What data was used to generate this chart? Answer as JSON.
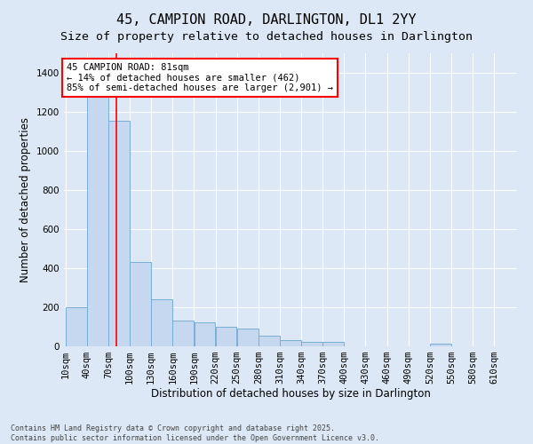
{
  "title": "45, CAMPION ROAD, DARLINGTON, DL1 2YY",
  "subtitle": "Size of property relative to detached houses in Darlington",
  "xlabel": "Distribution of detached houses by size in Darlington",
  "ylabel": "Number of detached properties",
  "bins": [
    10,
    40,
    70,
    100,
    130,
    160,
    190,
    220,
    250,
    280,
    310,
    340,
    370,
    400,
    430,
    460,
    490,
    520,
    550,
    580,
    610
  ],
  "counts": [
    200,
    1330,
    1155,
    430,
    240,
    130,
    125,
    100,
    90,
    55,
    30,
    25,
    25,
    0,
    0,
    0,
    0,
    15,
    0,
    0
  ],
  "bar_color": "#c5d8f0",
  "bar_edge_color": "#7aaed6",
  "red_line_x": 81,
  "annotation_text": "45 CAMPION ROAD: 81sqm\n← 14% of detached houses are smaller (462)\n85% of semi-detached houses are larger (2,901) →",
  "ylim": [
    0,
    1500
  ],
  "yticks": [
    0,
    200,
    400,
    600,
    800,
    1000,
    1200,
    1400
  ],
  "footnote1": "Contains HM Land Registry data © Crown copyright and database right 2025.",
  "footnote2": "Contains public sector information licensed under the Open Government Licence v3.0.",
  "background_color": "#dce8f5",
  "plot_background": "#dce8f5",
  "grid_color": "#ffffff",
  "title_fontsize": 11,
  "subtitle_fontsize": 9.5,
  "annotation_fontsize": 7.5,
  "tick_fontsize": 7.5,
  "label_fontsize": 8.5,
  "footnote_fontsize": 6.0
}
